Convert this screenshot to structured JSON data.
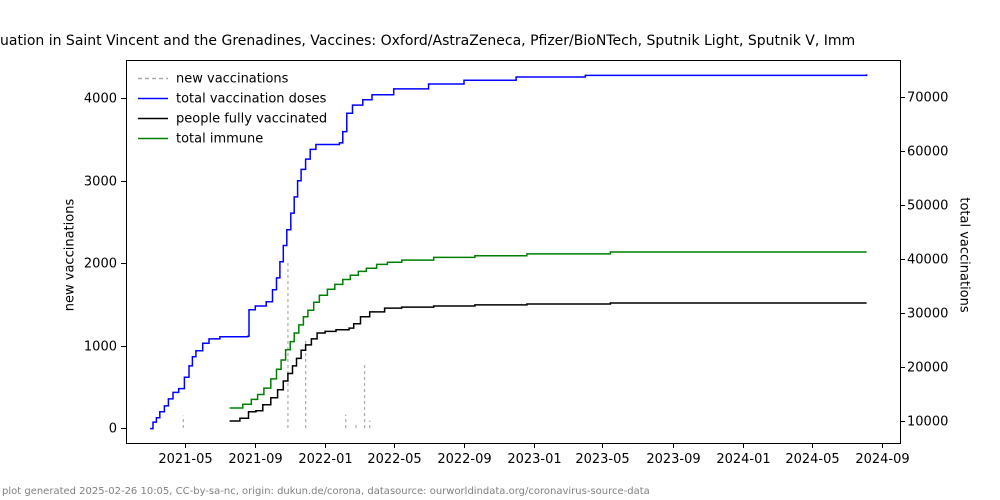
{
  "header": {
    "title_visible": "uation in Saint Vincent and the Grenadines, Vaccines: Oxford/AstraZeneca, Pfizer/BioNTech, Sputnik Light, Sputnik V, Imm"
  },
  "footer": {
    "note": "plot generated 2025-02-26 10:05, CC-by-sa-nc, origin: dukun.de/corona, datasource: ourworldindata.org/coronavirus-source-data"
  },
  "colors": {
    "new_vaccinations": "#aaaaaa",
    "total_vaccination_doses": "#0000ff",
    "people_fully_vaccinated": "#000000",
    "total_immune": "#008000",
    "frame": "#000000",
    "footer_text": "#808080"
  },
  "chart_data": {
    "type": "line",
    "title": "uation in Saint Vincent and the Grenadines, Vaccines: Oxford/AstraZeneca, Pfizer/BioNTech, Sputnik Light, Sputnik V, Imm",
    "ylabel_left": "new vaccinations",
    "ylabel_right": "total vaccinations",
    "x_tick_labels": [
      "2021-05",
      "2021-09",
      "2022-01",
      "2022-05",
      "2022-09",
      "2023-01",
      "2023-05",
      "2023-09",
      "2024-01",
      "2024-05",
      "2024-09"
    ],
    "y_ticks_left": [
      0,
      1000,
      2000,
      3000,
      4000
    ],
    "y_ticks_right": [
      10000,
      20000,
      30000,
      40000,
      50000,
      60000,
      70000
    ],
    "ylim_left": [
      -180,
      4460
    ],
    "ylim_right": [
      5930,
      76850
    ],
    "xlim": [
      "2021-01-18",
      "2024-10-02"
    ],
    "grid": false,
    "legend_position": "upper-left",
    "legend": [
      {
        "label": "new vaccinations",
        "color": "#aaaaaa",
        "dashed": true
      },
      {
        "label": "total vaccination doses",
        "color": "#0000ff",
        "dashed": false
      },
      {
        "label": "people fully vaccinated",
        "color": "#000000",
        "dashed": false
      },
      {
        "label": "total immune",
        "color": "#008000",
        "dashed": false
      }
    ],
    "series": [
      {
        "name": "new vaccinations",
        "axis": "left",
        "style": "dashed-spikes",
        "color": "#aaaaaa",
        "points": [
          [
            "2021-04-28",
            150
          ],
          [
            "2021-10-28",
            2000
          ],
          [
            "2021-11-28",
            1090
          ],
          [
            "2022-02-06",
            160
          ],
          [
            "2022-02-24",
            60
          ],
          [
            "2022-03-11",
            765
          ],
          [
            "2022-03-20",
            90
          ]
        ]
      },
      {
        "name": "total vaccination doses",
        "axis": "right",
        "style": "step",
        "color": "#0000ff",
        "points": [
          [
            "2021-03-01",
            8600
          ],
          [
            "2021-03-06",
            9800
          ],
          [
            "2021-03-12",
            10600
          ],
          [
            "2021-03-18",
            11700
          ],
          [
            "2021-03-26",
            12800
          ],
          [
            "2021-04-02",
            14100
          ],
          [
            "2021-04-10",
            15300
          ],
          [
            "2021-04-20",
            16000
          ],
          [
            "2021-04-30",
            18100
          ],
          [
            "2021-05-08",
            20200
          ],
          [
            "2021-05-14",
            21900
          ],
          [
            "2021-05-20",
            23000
          ],
          [
            "2021-06-01",
            24400
          ],
          [
            "2021-06-12",
            25200
          ],
          [
            "2021-07-01",
            25600
          ],
          [
            "2021-08-19",
            25700
          ],
          [
            "2021-08-21",
            30600
          ],
          [
            "2021-09-01",
            31300
          ],
          [
            "2021-09-20",
            32100
          ],
          [
            "2021-10-01",
            34300
          ],
          [
            "2021-10-08",
            36500
          ],
          [
            "2021-10-14",
            39500
          ],
          [
            "2021-10-20",
            42500
          ],
          [
            "2021-10-26",
            45400
          ],
          [
            "2021-11-02",
            48500
          ],
          [
            "2021-11-08",
            51500
          ],
          [
            "2021-11-14",
            54500
          ],
          [
            "2021-11-20",
            56600
          ],
          [
            "2021-11-28",
            58500
          ],
          [
            "2021-12-06",
            60300
          ],
          [
            "2021-12-16",
            61200
          ],
          [
            "2022-01-26",
            61500
          ],
          [
            "2022-02-01",
            63600
          ],
          [
            "2022-02-08",
            67000
          ],
          [
            "2022-02-18",
            68500
          ],
          [
            "2022-03-08",
            69500
          ],
          [
            "2022-03-24",
            70400
          ],
          [
            "2022-05-01",
            71500
          ],
          [
            "2022-07-01",
            72400
          ],
          [
            "2022-09-01",
            73100
          ],
          [
            "2022-12-01",
            73700
          ],
          [
            "2023-04-01",
            74000
          ],
          [
            "2024-08-05",
            74200
          ]
        ]
      },
      {
        "name": "people fully vaccinated",
        "axis": "right",
        "style": "step",
        "color": "#000000",
        "points": [
          [
            "2021-07-18",
            10000
          ],
          [
            "2021-08-05",
            10500
          ],
          [
            "2021-08-20",
            11700
          ],
          [
            "2021-09-02",
            11900
          ],
          [
            "2021-09-14",
            13000
          ],
          [
            "2021-09-28",
            14300
          ],
          [
            "2021-10-10",
            15800
          ],
          [
            "2021-10-20",
            17400
          ],
          [
            "2021-10-28",
            18800
          ],
          [
            "2021-11-05",
            20200
          ],
          [
            "2021-11-12",
            21600
          ],
          [
            "2021-11-20",
            23100
          ],
          [
            "2021-11-28",
            24100
          ],
          [
            "2021-12-08",
            25200
          ],
          [
            "2021-12-18",
            26300
          ],
          [
            "2022-01-01",
            26600
          ],
          [
            "2022-01-20",
            26900
          ],
          [
            "2022-02-12",
            27200
          ],
          [
            "2022-02-20",
            28000
          ],
          [
            "2022-03-04",
            29300
          ],
          [
            "2022-03-20",
            30200
          ],
          [
            "2022-04-15",
            30900
          ],
          [
            "2022-05-15",
            31100
          ],
          [
            "2022-07-10",
            31300
          ],
          [
            "2022-09-20",
            31500
          ],
          [
            "2022-12-20",
            31670
          ],
          [
            "2023-05-15",
            31850
          ],
          [
            "2024-08-05",
            31850
          ]
        ]
      },
      {
        "name": "total immune",
        "axis": "right",
        "style": "step",
        "color": "#008000",
        "points": [
          [
            "2021-07-18",
            12400
          ],
          [
            "2021-08-10",
            13100
          ],
          [
            "2021-08-25",
            14000
          ],
          [
            "2021-09-05",
            14900
          ],
          [
            "2021-09-16",
            16100
          ],
          [
            "2021-09-28",
            17800
          ],
          [
            "2021-10-08",
            19600
          ],
          [
            "2021-10-16",
            21300
          ],
          [
            "2021-10-24",
            23200
          ],
          [
            "2021-11-01",
            24700
          ],
          [
            "2021-11-08",
            26300
          ],
          [
            "2021-11-16",
            27800
          ],
          [
            "2021-11-24",
            29300
          ],
          [
            "2021-12-02",
            30500
          ],
          [
            "2021-12-12",
            32000
          ],
          [
            "2021-12-22",
            33300
          ],
          [
            "2022-01-05",
            34400
          ],
          [
            "2022-01-18",
            35300
          ],
          [
            "2022-02-01",
            36200
          ],
          [
            "2022-02-14",
            37000
          ],
          [
            "2022-02-28",
            37700
          ],
          [
            "2022-03-14",
            38300
          ],
          [
            "2022-04-01",
            39000
          ],
          [
            "2022-04-20",
            39400
          ],
          [
            "2022-05-15",
            39800
          ],
          [
            "2022-07-10",
            40300
          ],
          [
            "2022-09-20",
            40600
          ],
          [
            "2022-12-20",
            40950
          ],
          [
            "2023-05-15",
            41300
          ],
          [
            "2024-08-05",
            41300
          ]
        ]
      }
    ]
  }
}
